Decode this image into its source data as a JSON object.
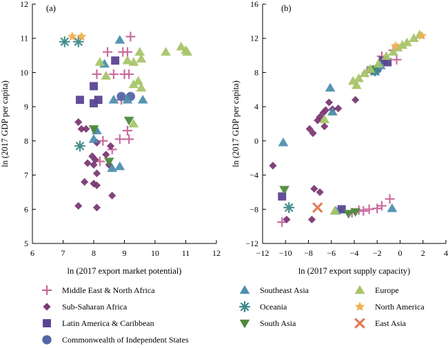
{
  "colors": {
    "Middle East & North Africa": "#c8679b",
    "Sub-Saharan Africa": "#7a3a74",
    "Latin America & Caribbean": "#5a4393",
    "Commonwealth of Independent States": "#5566a6",
    "Southeast Asia": "#4d8fad",
    "Oceania": "#3d8a8a",
    "South Asia": "#4e8a3c",
    "Europe": "#a8c56a",
    "North America": "#f0b050",
    "East Asia": "#e07a50"
  },
  "markers": {
    "Middle East & North Africa": "plus",
    "Sub-Saharan Africa": "diamond",
    "Latin America & Caribbean": "square",
    "Commonwealth of Independent States": "circle",
    "Southeast Asia": "triangle-up",
    "Oceania": "asterisk",
    "South Asia": "triangle-down",
    "Europe": "triangle-up",
    "North America": "star",
    "East Asia": "x"
  },
  "legend": [
    {
      "label": "Middle East & North Africa"
    },
    {
      "label": "Sub-Saharan Africa"
    },
    {
      "label": "Latin America & Caribbean"
    },
    {
      "label": "Commonwealth of Independent States"
    },
    {
      "label": "Southeast Asia"
    },
    {
      "label": "Oceania"
    },
    {
      "label": "South Asia"
    },
    {
      "label": "Europe"
    },
    {
      "label": "North America"
    },
    {
      "label": "East Asia"
    }
  ],
  "chart_data": [
    {
      "type": "scatter",
      "panel_label": "(a)",
      "xlabel": "ln (2017 export market potential)",
      "ylabel": "ln (2017 GDP per capita)",
      "xlim": [
        6,
        12
      ],
      "ylim": [
        5,
        12
      ],
      "xticks": [
        6,
        7,
        8,
        9,
        10,
        11,
        12
      ],
      "yticks": [
        5,
        6,
        7,
        8,
        9,
        10,
        11,
        12
      ],
      "series": [
        {
          "name": "Middle East & North Africa",
          "points": [
            [
              9.2,
              11.05
            ],
            [
              8.45,
              10.6
            ],
            [
              8.95,
              10.6
            ],
            [
              9.1,
              10.6
            ],
            [
              8.1,
              9.95
            ],
            [
              8.65,
              9.95
            ],
            [
              9.0,
              9.95
            ],
            [
              9.15,
              9.95
            ],
            [
              8.9,
              9.2
            ],
            [
              9.1,
              8.3
            ],
            [
              8.85,
              8.05
            ],
            [
              9.15,
              8.05
            ],
            [
              8.3,
              8.0
            ],
            [
              8.6,
              7.75
            ],
            [
              8.2,
              7.4
            ]
          ]
        },
        {
          "name": "Sub-Saharan Africa",
          "points": [
            [
              7.5,
              8.55
            ],
            [
              7.6,
              8.35
            ],
            [
              7.75,
              8.35
            ],
            [
              8.05,
              8.3
            ],
            [
              8.1,
              7.95
            ],
            [
              8.55,
              7.85
            ],
            [
              8.4,
              7.6
            ],
            [
              7.95,
              7.55
            ],
            [
              8.05,
              7.45
            ],
            [
              7.8,
              7.35
            ],
            [
              8.0,
              7.3
            ],
            [
              8.5,
              7.3
            ],
            [
              8.1,
              7.05
            ],
            [
              7.7,
              6.8
            ],
            [
              8.0,
              6.75
            ],
            [
              8.1,
              6.7
            ],
            [
              8.6,
              6.4
            ],
            [
              7.5,
              6.1
            ],
            [
              8.1,
              6.05
            ]
          ]
        },
        {
          "name": "Latin America & Caribbean",
          "points": [
            [
              8.7,
              10.35
            ],
            [
              8.0,
              9.6
            ],
            [
              7.55,
              9.2
            ],
            [
              8.0,
              9.1
            ],
            [
              8.15,
              9.2
            ]
          ]
        },
        {
          "name": "Commonwealth of Independent States",
          "points": [
            [
              8.9,
              9.3
            ],
            [
              9.2,
              9.3
            ]
          ]
        },
        {
          "name": "Southeast Asia",
          "points": [
            [
              8.85,
              10.95
            ],
            [
              8.35,
              10.25
            ],
            [
              8.65,
              9.2
            ],
            [
              9.1,
              9.2
            ],
            [
              9.6,
              9.2
            ],
            [
              8.1,
              8.3
            ],
            [
              8.0,
              8.05
            ],
            [
              8.85,
              7.25
            ],
            [
              8.6,
              7.2
            ]
          ]
        },
        {
          "name": "Oceania",
          "points": [
            [
              7.05,
              10.9
            ],
            [
              7.5,
              10.9
            ],
            [
              7.55,
              7.85
            ]
          ]
        },
        {
          "name": "South Asia",
          "points": [
            [
              8.0,
              8.35
            ],
            [
              9.15,
              8.6
            ],
            [
              8.5,
              7.4
            ]
          ]
        },
        {
          "name": "Europe",
          "points": [
            [
              10.35,
              10.6
            ],
            [
              10.85,
              10.75
            ],
            [
              11.0,
              10.65
            ],
            [
              11.05,
              10.6
            ],
            [
              9.5,
              10.6
            ],
            [
              9.55,
              10.4
            ],
            [
              9.1,
              10.35
            ],
            [
              9.3,
              10.3
            ],
            [
              8.2,
              10.3
            ],
            [
              9.45,
              9.75
            ],
            [
              9.3,
              9.65
            ],
            [
              9.55,
              9.55
            ],
            [
              8.4,
              9.9
            ],
            [
              9.3,
              8.5
            ]
          ]
        },
        {
          "name": "North America",
          "points": [
            [
              7.3,
              11.05
            ],
            [
              7.6,
              11.05
            ]
          ]
        }
      ]
    },
    {
      "type": "scatter",
      "panel_label": "(b)",
      "xlabel": "ln (2017 export supply capacity)",
      "ylabel": "ln (2017 GDP per capita)",
      "xlim": [
        -12,
        4
      ],
      "ylim": [
        -12,
        16
      ],
      "xticks": [
        -12,
        -10,
        -8,
        -6,
        -4,
        -2,
        0,
        2,
        4
      ],
      "yticks": [
        -12,
        -8,
        -4,
        0,
        4,
        8,
        12,
        16
      ],
      "series": [
        {
          "name": "Middle East & North Africa",
          "points": [
            [
              -0.6,
              10.6
            ],
            [
              -0.3,
              9.5
            ],
            [
              -1.6,
              9.9
            ],
            [
              -2.9,
              8.0
            ],
            [
              -0.9,
              -6.8
            ],
            [
              -1.6,
              -7.6
            ],
            [
              -2.0,
              -7.9
            ],
            [
              -2.7,
              -8.0
            ],
            [
              -3.2,
              -8.2
            ],
            [
              -3.6,
              -8.1
            ],
            [
              -4.2,
              -8.4
            ],
            [
              -10.3,
              -9.5
            ]
          ]
        },
        {
          "name": "Sub-Saharan Africa",
          "points": [
            [
              -6.2,
              4.5
            ],
            [
              -3.9,
              4.8
            ],
            [
              -5.4,
              3.8
            ],
            [
              -5.9,
              3.7
            ],
            [
              -6.5,
              3.6
            ],
            [
              -6.7,
              3.3
            ],
            [
              -7.0,
              2.8
            ],
            [
              -7.2,
              2.4
            ],
            [
              -6.6,
              1.7
            ],
            [
              -7.9,
              1.4
            ],
            [
              -7.6,
              0.9
            ],
            [
              -11.1,
              -2.9
            ],
            [
              -7.5,
              -5.6
            ],
            [
              -7.0,
              -6.0
            ],
            [
              -7.7,
              -9.2
            ],
            [
              -9.9,
              -9.2
            ]
          ]
        },
        {
          "name": "Latin America & Caribbean",
          "points": [
            [
              -1.5,
              9.4
            ],
            [
              -1.1,
              9.2
            ],
            [
              -10.3,
              -6.5
            ],
            [
              -5.1,
              -8.0
            ]
          ]
        },
        {
          "name": "Commonwealth of Independent States",
          "points": [
            [
              -2.3,
              8.3
            ],
            [
              -2.0,
              8.4
            ]
          ]
        },
        {
          "name": "Southeast Asia",
          "points": [
            [
              -6.1,
              6.2
            ],
            [
              -1.7,
              8.8
            ],
            [
              -2.2,
              8.1
            ],
            [
              -5.9,
              3.4
            ],
            [
              -10.2,
              -0.2
            ],
            [
              -5.6,
              -8.2
            ],
            [
              -0.7,
              -7.9
            ]
          ]
        },
        {
          "name": "Oceania",
          "points": [
            [
              -2.2,
              8.2
            ],
            [
              -9.7,
              -7.8
            ]
          ]
        },
        {
          "name": "South Asia",
          "points": [
            [
              -2.5,
              8.3
            ],
            [
              -10.1,
              -5.7
            ],
            [
              -4.5,
              -8.5
            ],
            [
              -3.9,
              -8.3
            ]
          ]
        },
        {
          "name": "Europe",
          "points": [
            [
              1.7,
              12.4
            ],
            [
              1.2,
              12.0
            ],
            [
              0.6,
              11.5
            ],
            [
              0.2,
              11.2
            ],
            [
              -0.2,
              10.9
            ],
            [
              -0.6,
              10.4
            ],
            [
              -1.2,
              9.9
            ],
            [
              -1.9,
              9.0
            ],
            [
              -2.6,
              8.4
            ],
            [
              -3.1,
              7.9
            ],
            [
              -3.6,
              7.3
            ],
            [
              -4.1,
              7.0
            ],
            [
              -3.8,
              6.5
            ],
            [
              -6.6,
              2.5
            ],
            [
              -5.7,
              -8.2
            ]
          ]
        },
        {
          "name": "North America",
          "points": [
            [
              1.9,
              12.3
            ],
            [
              -0.4,
              11.1
            ]
          ]
        },
        {
          "name": "East Asia",
          "points": [
            [
              -7.2,
              -7.8
            ]
          ]
        }
      ]
    }
  ]
}
